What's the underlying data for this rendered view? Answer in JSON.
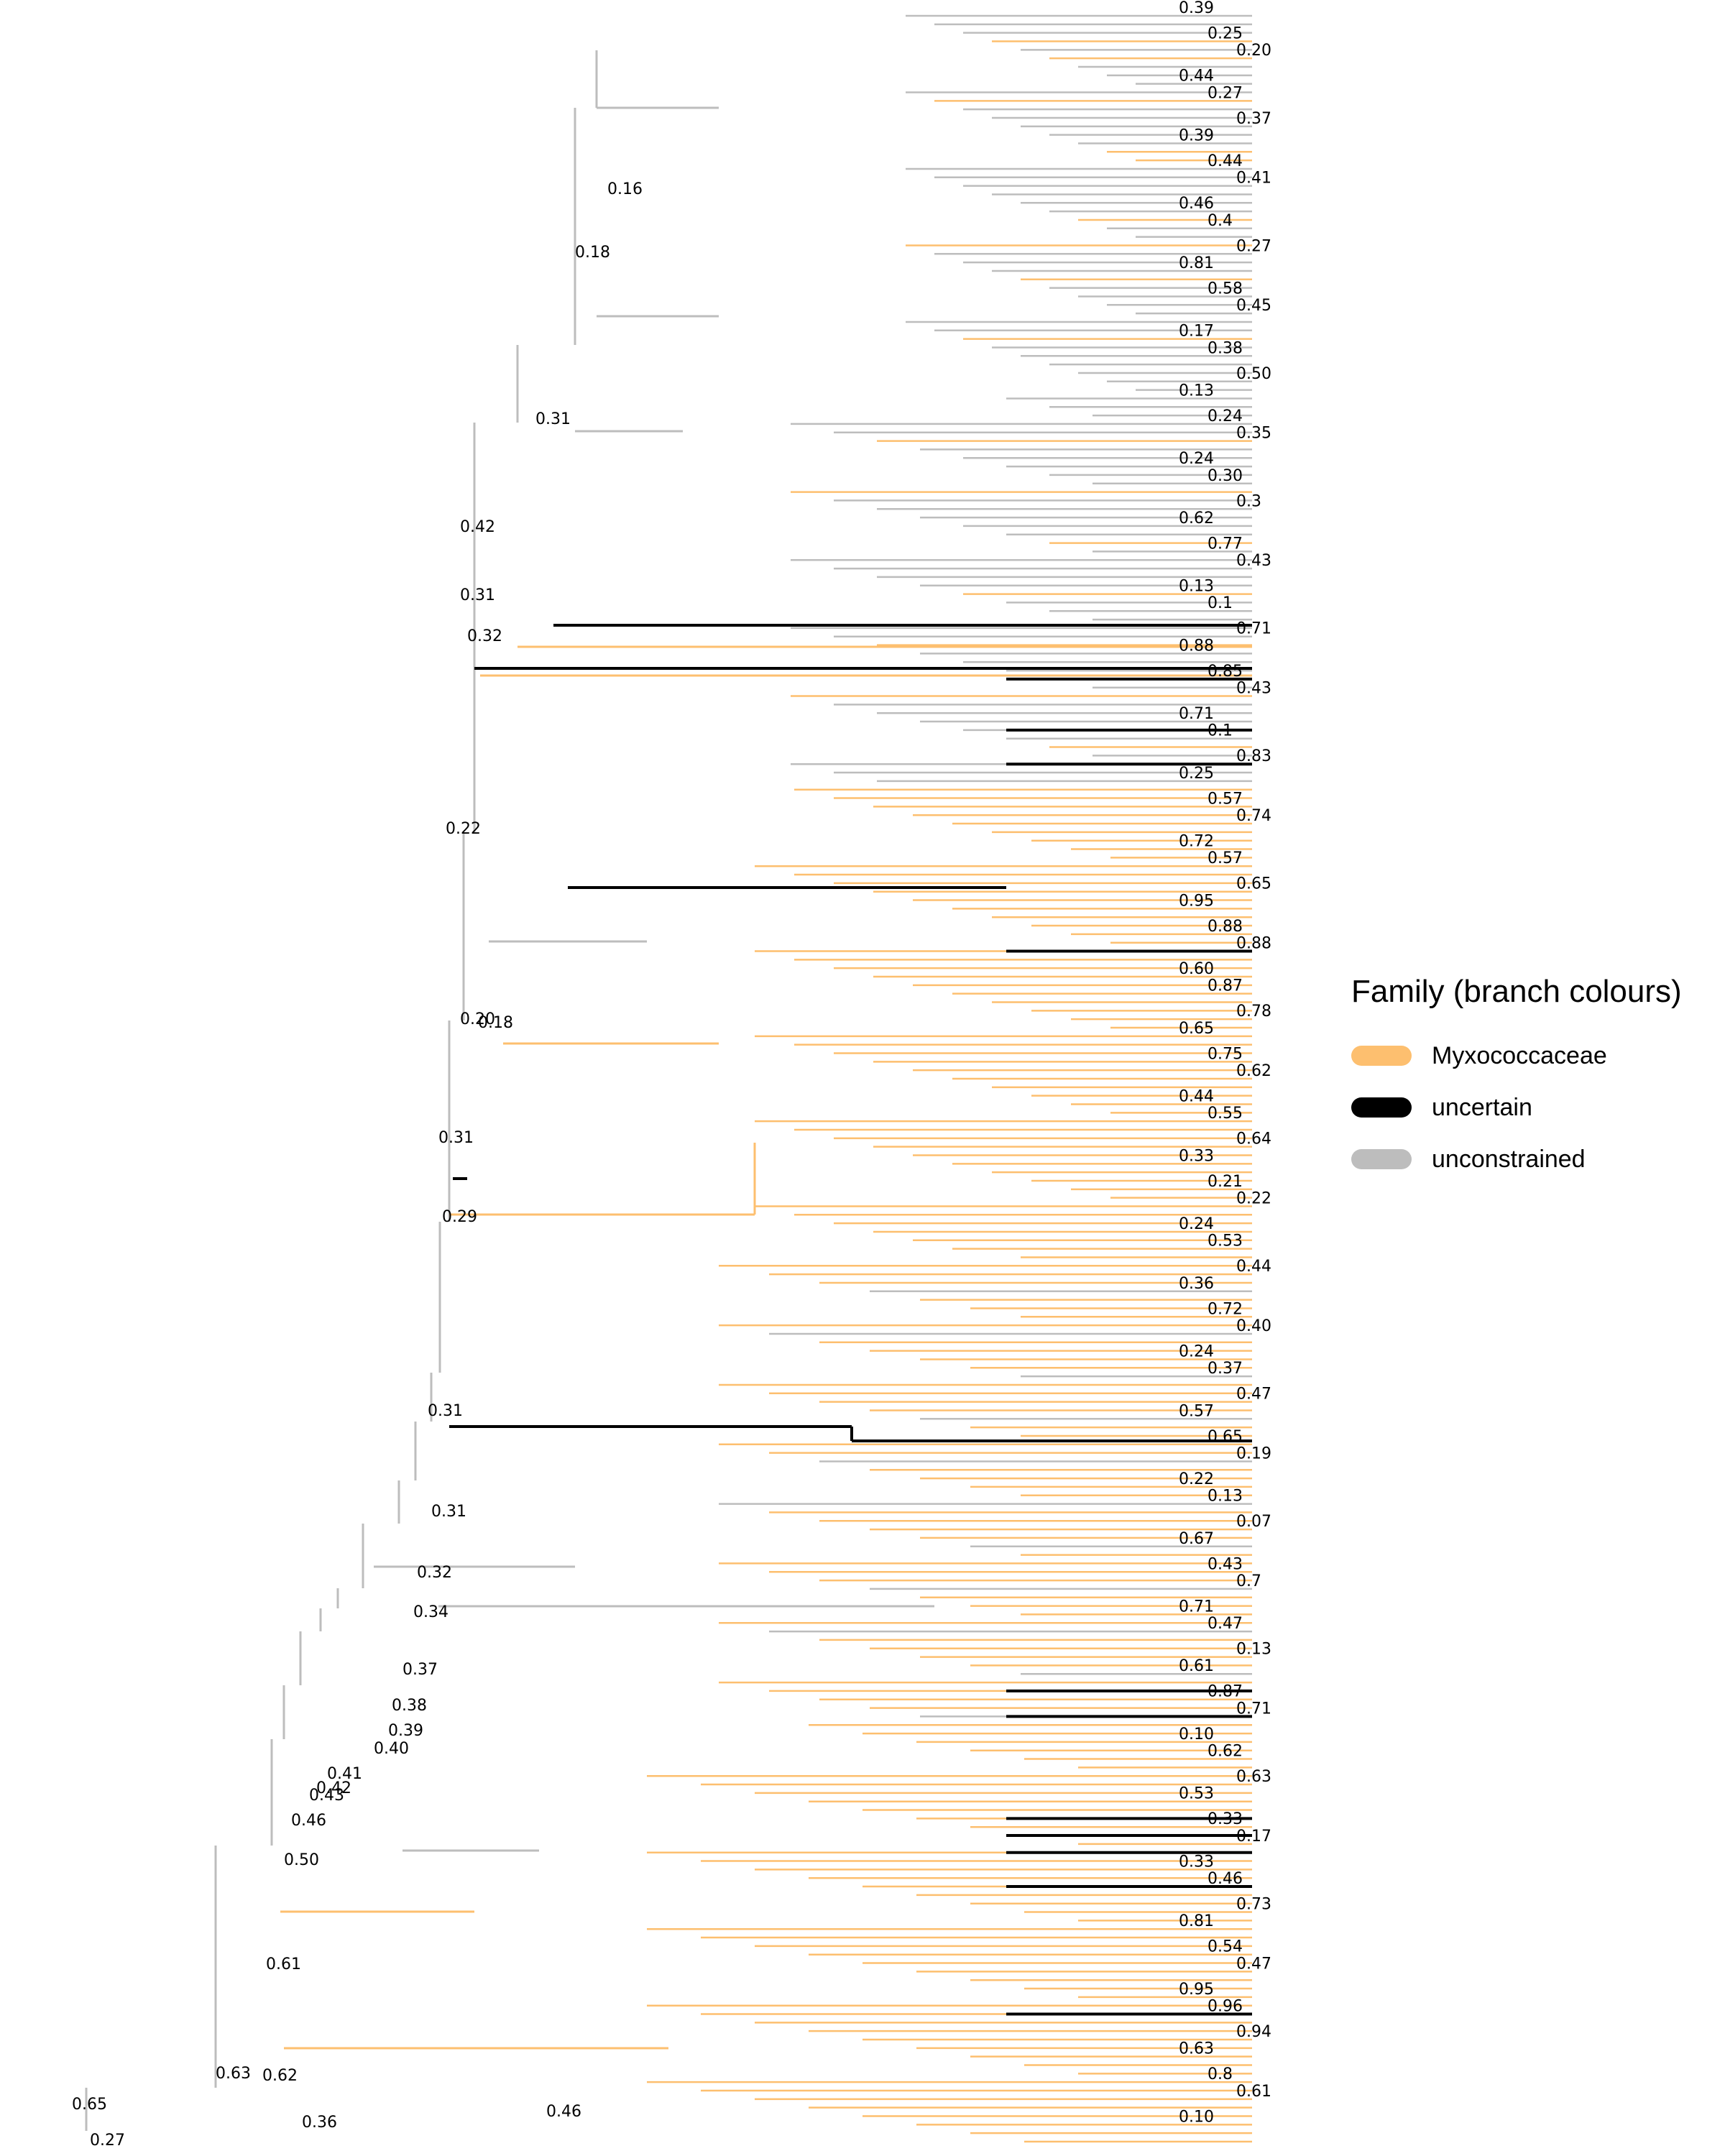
{
  "legend": {
    "title": "Family (branch colours)",
    "items": [
      {
        "label": "Myxococcaceae",
        "color": "#FDBF6F"
      },
      {
        "label": "uncertain",
        "color": "#000000"
      },
      {
        "label": "unconstrained",
        "color": "#BDBDBD"
      }
    ]
  },
  "tree": {
    "root_labels": [
      "0.65",
      "0.27",
      "0.63",
      "0.36",
      "0.46",
      "0.62",
      "0.61",
      "0.50",
      "0.46",
      "0.43",
      "0.42",
      "0.41",
      "0.40",
      "0.39",
      "0.38",
      "0.37",
      "0.34",
      "0.32",
      "0.31",
      "0.31",
      "0.29",
      "0.22",
      "0.20",
      "0.18",
      "0.31",
      "0.31",
      "0.32",
      "0.42",
      "0.31",
      "0.16",
      "0.18"
    ],
    "tip_labels": [
      "0.39",
      "0.25",
      "0.20",
      "0.44",
      "0.27",
      "0.37",
      "0.39",
      "0.44",
      "0.41",
      "0.46",
      "0.4",
      "0.27",
      "0.81",
      "0.58",
      "0.45",
      "0.17",
      "0.38",
      "0.50",
      "0.13",
      "0.24",
      "0.35",
      "0.24",
      "0.30",
      "0.3",
      "0.62",
      "0.77",
      "0.43",
      "0.13",
      "0.1",
      "0.71",
      "0.88",
      "0.85",
      "0.43",
      "0.71",
      "0.1",
      "0.83",
      "0.25",
      "0.57",
      "0.74",
      "0.72",
      "0.57",
      "0.65",
      "0.95",
      "0.88",
      "0.88",
      "0.60",
      "0.87",
      "0.78",
      "0.65",
      "0.75",
      "0.62",
      "0.44",
      "0.55",
      "0.64",
      "0.33",
      "0.21",
      "0.22",
      "0.24",
      "0.53",
      "0.44",
      "0.36",
      "0.72",
      "0.40",
      "0.24",
      "0.37",
      "0.47",
      "0.57",
      "0.65",
      "0.19",
      "0.22",
      "0.13",
      "0.07",
      "0.67",
      "0.43",
      "0.7",
      "0.71",
      "0.47",
      "0.13",
      "0.61",
      "0.87",
      "0.71",
      "0.10",
      "0.62",
      "0.63",
      "0.53",
      "0.33",
      "0.17",
      "0.33",
      "0.46",
      "0.73",
      "0.81",
      "0.54",
      "0.47",
      "0.95",
      "0.96",
      "0.94",
      "0.63",
      "0.8",
      "0.61",
      "0.10"
    ]
  }
}
